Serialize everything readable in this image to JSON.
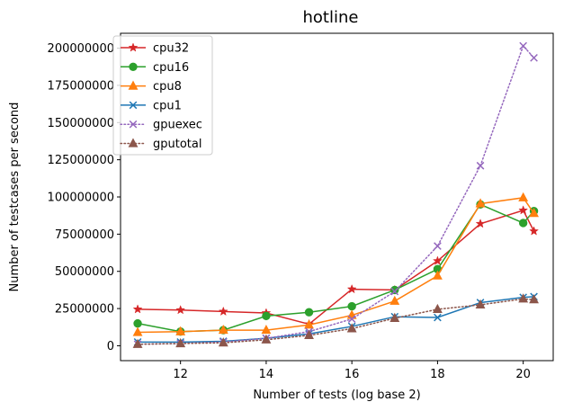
{
  "chart_data": {
    "type": "line",
    "title": "hotline",
    "xlabel": "Number of tests (log base 2)",
    "ylabel": "Number of testcases per second",
    "xlim": [
      10.6,
      20.7
    ],
    "ylim": [
      -10000000,
      210000000
    ],
    "xticks": [
      12,
      14,
      16,
      18,
      20
    ],
    "xtick_labels": [
      "12",
      "14",
      "16",
      "18",
      "20"
    ],
    "yticks": [
      0,
      25000000,
      50000000,
      75000000,
      100000000,
      125000000,
      150000000,
      175000000,
      200000000
    ],
    "ytick_labels": [
      "0",
      "25000000",
      "50000000",
      "75000000",
      "100000000",
      "125000000",
      "150000000",
      "175000000",
      "200000000"
    ],
    "grid": false,
    "legend_position": "top-left",
    "series": [
      {
        "name": "cpu32",
        "color": "#d62728",
        "marker": "star",
        "style": "solid",
        "x": [
          11,
          12,
          13,
          14,
          15,
          16,
          17,
          18,
          19,
          20,
          20.25
        ],
        "y": [
          24500000,
          24000000,
          23000000,
          22000000,
          14500000,
          38000000,
          37500000,
          57000000,
          82000000,
          91000000,
          77000000
        ]
      },
      {
        "name": "cpu16",
        "color": "#2ca02c",
        "marker": "circle",
        "style": "solid",
        "x": [
          11,
          12,
          13,
          14,
          15,
          16,
          17,
          18,
          19,
          20,
          20.25
        ],
        "y": [
          15000000,
          9500000,
          10500000,
          20000000,
          22500000,
          26500000,
          37500000,
          51500000,
          95000000,
          82500000,
          90500000
        ]
      },
      {
        "name": "cpu8",
        "color": "#ff7f0e",
        "marker": "triangle",
        "style": "solid",
        "x": [
          11,
          12,
          13,
          14,
          15,
          16,
          17,
          18,
          19,
          20,
          20.25
        ],
        "y": [
          9000000,
          9500000,
          10500000,
          10500000,
          14000000,
          20500000,
          30000000,
          47000000,
          95500000,
          99500000,
          89000000
        ]
      },
      {
        "name": "cpu1",
        "color": "#1f77b4",
        "marker": "x",
        "style": "solid",
        "x": [
          11,
          12,
          13,
          14,
          15,
          16,
          17,
          18,
          19,
          20,
          20.25
        ],
        "y": [
          2500000,
          2500000,
          3000000,
          5000000,
          8000000,
          13000000,
          19500000,
          19000000,
          29000000,
          32500000,
          33000000
        ]
      },
      {
        "name": "gpuexec",
        "color": "#9467bd",
        "marker": "x",
        "style": "dotted",
        "x": [
          11,
          12,
          13,
          14,
          15,
          16,
          17,
          18,
          19,
          20,
          20.25
        ],
        "y": [
          1000000,
          1500000,
          2500000,
          5000000,
          9500000,
          18000000,
          36500000,
          67000000,
          121000000,
          201500000,
          193500000
        ]
      },
      {
        "name": "gputotal",
        "color": "#8c564b",
        "marker": "triangle",
        "style": "dotted",
        "x": [
          11,
          12,
          13,
          14,
          15,
          16,
          17,
          18,
          19,
          20,
          20.25
        ],
        "y": [
          1000000,
          1500000,
          2000000,
          4000000,
          7000000,
          11500000,
          18500000,
          24500000,
          27500000,
          31500000,
          31000000
        ]
      }
    ]
  }
}
